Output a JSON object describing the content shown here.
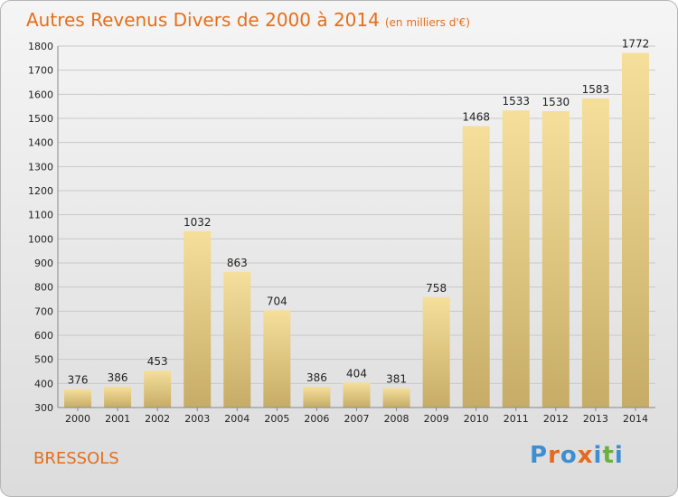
{
  "title": "Autres Revenus Divers de 2000 à 2014",
  "unit_note": "(en milliers d'€)",
  "location_label": "BRESSOLS",
  "logo_text": "Proxiti",
  "colors": {
    "title": "#e46f1b",
    "bar_top": "#f5df9b",
    "bar_bottom": "#c6ac66",
    "grid": "#c8c8c8",
    "axis_text": "#222222",
    "logo": [
      "#3d8fd1",
      "#e66a1c",
      "#3d8fd1",
      "#e66a1c",
      "#3d8fd1",
      "#69b13c",
      "#3d8fd1"
    ]
  },
  "chart_data": {
    "type": "bar",
    "categories": [
      "2000",
      "2001",
      "2002",
      "2003",
      "2004",
      "2005",
      "2006",
      "2007",
      "2008",
      "2009",
      "2010",
      "2011",
      "2012",
      "2013",
      "2014"
    ],
    "values": [
      376,
      386,
      453,
      1032,
      863,
      704,
      386,
      404,
      381,
      758,
      1468,
      1533,
      1530,
      1583,
      1772
    ],
    "ylim": [
      300,
      1800
    ],
    "yticks": [
      300,
      400,
      500,
      600,
      700,
      800,
      900,
      1000,
      1100,
      1200,
      1300,
      1400,
      1500,
      1600,
      1700,
      1800
    ],
    "grid": true,
    "xlabel": "",
    "ylabel": ""
  }
}
